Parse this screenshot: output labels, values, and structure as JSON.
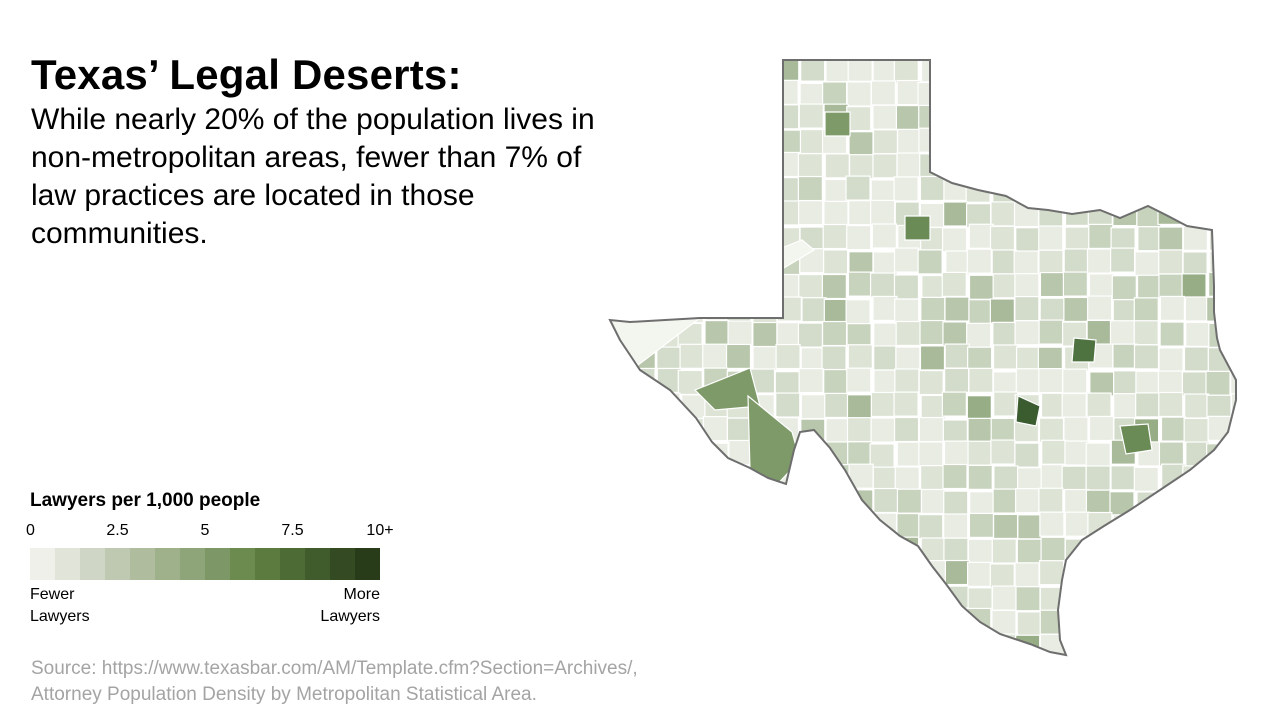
{
  "title": "Texas’ Legal Deserts:",
  "subtitle": "While nearly 20% of the population lives in non-metropolitan areas, fewer than 7% of law practices are located in those communities.",
  "legend": {
    "title": "Lawyers per 1,000 people",
    "ticks": [
      "0",
      "2.5",
      "5",
      "7.5",
      "10+"
    ],
    "tick_values": [
      0,
      2.5,
      5,
      7.5,
      10
    ],
    "min": 0,
    "max": 10,
    "low_label_line1": "Fewer",
    "low_label_line2": "Lawyers",
    "high_label_line1": "More",
    "high_label_line2": "Lawyers",
    "colors": [
      "#eef0e9",
      "#e0e4d9",
      "#cfd6c5",
      "#bfc9b1",
      "#afbd9e",
      "#9fb18b",
      "#8ea479",
      "#7e9766",
      "#6c8b4f",
      "#5c7c3f",
      "#4d6b35",
      "#405b2c",
      "#334a23",
      "#283c1a"
    ]
  },
  "source_line1": "Source: https://www.texasbar.com/AM/Template.cfm?Section=Archives/,",
  "source_line2": "Attorney Population Density by Metropolitan Statistical Area.",
  "map": {
    "region": "Texas",
    "fill_palette": [
      "#f3f5ef",
      "#e8ece2",
      "#dde4d5",
      "#d3dccb",
      "#c7d3bd",
      "#b8c7ab",
      "#a8ba99",
      "#96ad85",
      "#7e9a69",
      "#6a8a56",
      "#4f7340",
      "#3a5c2e"
    ]
  }
}
